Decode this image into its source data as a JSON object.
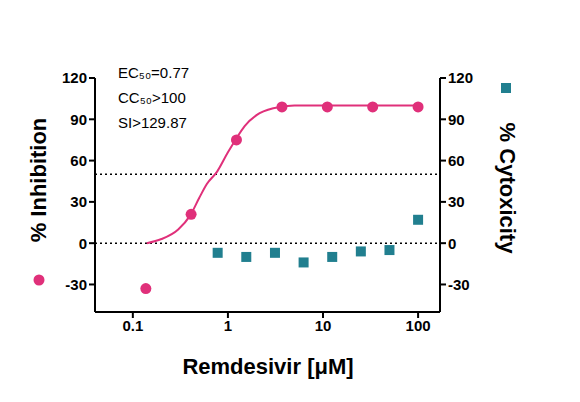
{
  "chart_data": {
    "type": "scatter",
    "xlabel": "Remdesivir [μM]",
    "ylabel": "% Inhibition",
    "y2label": "% Cytoxicity",
    "log": "x",
    "xlim": [
      0.04,
      170
    ],
    "xticks": [
      0.1,
      1,
      10,
      100
    ],
    "ylim": [
      -50,
      120
    ],
    "yticks": [
      -30,
      0,
      30,
      60,
      90,
      120
    ],
    "y2lim": [
      -50,
      120
    ],
    "y2ticks": [
      -30,
      0,
      30,
      60,
      90,
      120
    ],
    "hlines": [
      0,
      50
    ],
    "annotations": [
      "EC₅₀=0.77",
      "CC₅₀>100",
      "SI>129.87"
    ],
    "series": [
      {
        "name": "% Inhibition",
        "color": "#e0307a",
        "marker": "circle",
        "x": [
          0.137,
          0.41,
          1.23,
          3.7,
          11.1,
          33.3,
          100
        ],
        "values": [
          -33,
          21,
          75,
          99,
          99,
          99,
          99
        ],
        "fit": {
          "x": [
            0.14,
            0.2,
            0.3,
            0.4,
            0.5,
            0.6,
            0.77,
            1,
            1.2,
            1.5,
            2,
            3,
            5,
            10,
            30,
            100
          ],
          "values": [
            0,
            3,
            10,
            20,
            33,
            43,
            52,
            66,
            75,
            85,
            93,
            98,
            100,
            100,
            100,
            100
          ]
        }
      },
      {
        "name": "% Cytoxicity",
        "color": "#217f8f",
        "marker": "square",
        "axis": "y2",
        "x": [
          0.78,
          1.56,
          3.125,
          6.25,
          12.5,
          25,
          50,
          100
        ],
        "values": [
          -7,
          -10,
          -7,
          -14,
          -10,
          -6,
          -5,
          17
        ]
      }
    ]
  }
}
